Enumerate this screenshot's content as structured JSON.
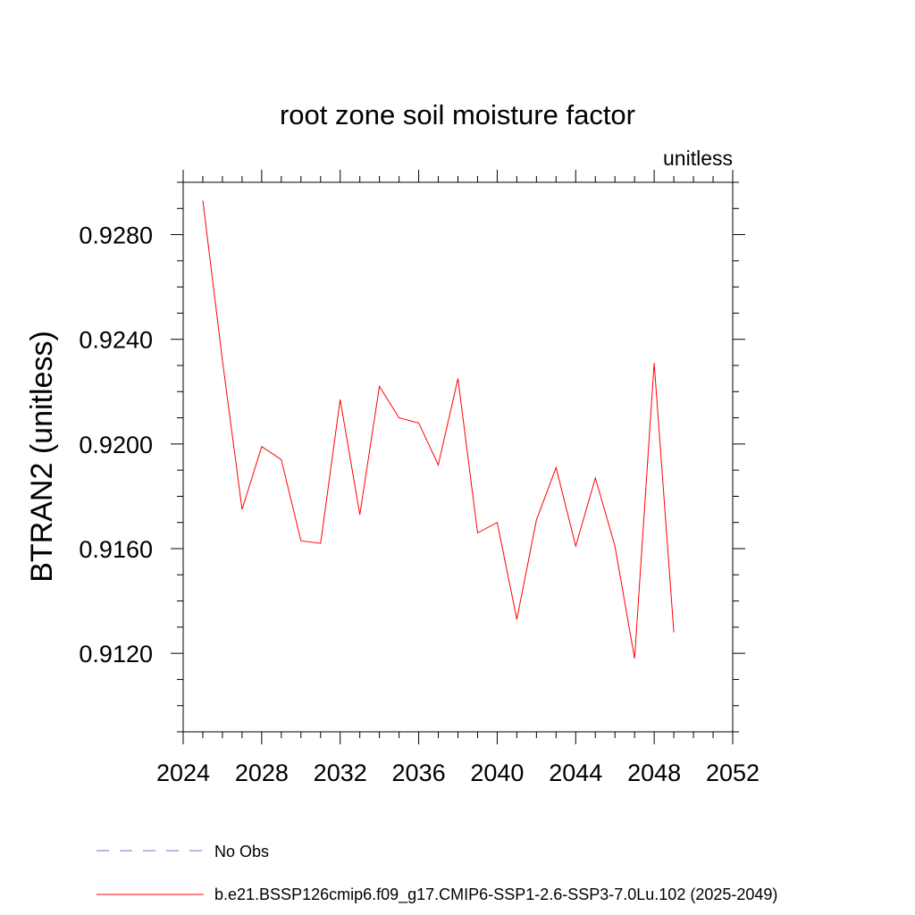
{
  "chart_data": {
    "type": "line",
    "title": "root zone soil moisture factor",
    "units_label": "unitless",
    "ylabel": "BTRAN2  (unitless)",
    "xlim": [
      2024,
      2052
    ],
    "ylim": [
      0.909,
      0.93
    ],
    "x_ticks": [
      "2024",
      "2028",
      "2032",
      "2036",
      "2040",
      "2044",
      "2048",
      "2052"
    ],
    "y_ticks": [
      "0.9120",
      "0.9160",
      "0.9200",
      "0.9240",
      "0.9280"
    ],
    "grid": false,
    "legend_position": "bottom",
    "series": [
      {
        "name": "b.e21.BSSP126cmip6.f09_g17.CMIP6-SSP1-2.6-SSP3-7.0Lu.102 (2025-2049)",
        "color": "#ff0000",
        "style": "solid",
        "x": [
          2025,
          2026,
          2027,
          2028,
          2029,
          2030,
          2031,
          2032,
          2033,
          2034,
          2035,
          2036,
          2037,
          2038,
          2039,
          2040,
          2041,
          2042,
          2043,
          2044,
          2045,
          2046,
          2047,
          2048,
          2049
        ],
        "y": [
          0.9293,
          0.9232,
          0.9175,
          0.9199,
          0.9194,
          0.9163,
          0.9162,
          0.9217,
          0.9173,
          0.9222,
          0.921,
          0.9208,
          0.9192,
          0.9225,
          0.9166,
          0.917,
          0.9133,
          0.9171,
          0.9191,
          0.9161,
          0.9187,
          0.9161,
          0.9118,
          0.9231,
          0.9128
        ]
      }
    ],
    "legend": [
      {
        "label": "No Obs",
        "color": "#7b68c8",
        "style": "dashed"
      },
      {
        "label": "b.e21.BSSP126cmip6.f09_g17.CMIP6-SSP1-2.6-SSP3-7.0Lu.102 (2025-2049)",
        "color": "#ff0000",
        "style": "solid"
      }
    ]
  }
}
